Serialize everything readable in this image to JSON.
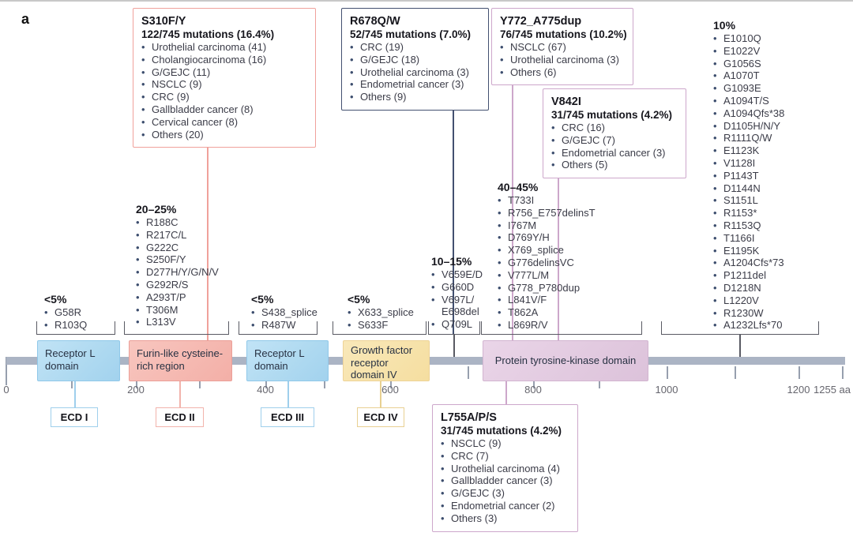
{
  "panel_label": "a",
  "colors": {
    "pink_accent": "#f0a19b",
    "navy_accent": "#435070",
    "purple_accent": "#cda7cb",
    "bullet": "#3d4e6e",
    "backbone_bar": "#abb4c4",
    "domain_blue": "#aed9f0",
    "domain_pink": "#f3afa7",
    "domain_yellow": "#f5dea0",
    "domain_purple": "#dcc2da"
  },
  "annotation_boxes": [
    {
      "title": "S310F/Y",
      "subtitle": "122/745 mutations (16.4%)",
      "items": [
        "Urothelial carcinoma (41)",
        "Cholangiocarcinoma (16)",
        "G/GEJC (11)",
        "NSCLC (9)",
        "CRC (9)",
        "Gallbladder cancer (8)",
        "Cervical cancer (8)",
        "Others (20)"
      ]
    },
    {
      "title": "R678Q/W",
      "subtitle": "52/745 mutations (7.0%)",
      "items": [
        "CRC (19)",
        "G/GEJC (18)",
        "Urothelial carcinoma (3)",
        "Endometrial cancer (3)",
        "Others (9)"
      ]
    },
    {
      "title": "Y772_A775dup",
      "subtitle": "76/745 mutations (10.2%)",
      "items": [
        "NSCLC (67)",
        "Urothelial carcinoma (3)",
        "Others (6)"
      ]
    },
    {
      "title": "V842I",
      "subtitle": "31/745 mutations (4.2%)",
      "items": [
        "CRC (16)",
        "G/GEJC (7)",
        "Endometrial cancer (3)",
        "Others (5)"
      ]
    },
    {
      "title": "L755A/P/S",
      "subtitle": "31/745 mutations (4.2%)",
      "items": [
        "NSCLC (9)",
        "CRC (7)",
        "Urothelial carcinoma (4)",
        "Gallbladder cancer (3)",
        "G/GEJC (3)",
        "Endometrial cancer (2)",
        "Others (3)"
      ]
    }
  ],
  "mutation_lists": [
    {
      "heading": "<5%",
      "items": [
        "G58R",
        "R103Q"
      ]
    },
    {
      "heading": "20–25%",
      "items": [
        "R188C",
        "R217C/L",
        "G222C",
        "S250F/Y",
        "D277H/Y/G/N/V",
        "G292R/S",
        "A293T/P",
        "T306M",
        "L313V"
      ]
    },
    {
      "heading": "<5%",
      "items": [
        "S438_splice",
        "R487W"
      ]
    },
    {
      "heading": "<5%",
      "items": [
        "X633_splice",
        "S633F"
      ]
    },
    {
      "heading": "10–15%",
      "items": [
        "V659E/D",
        "G660D",
        "V697L/\nE698del",
        "Q709L"
      ]
    },
    {
      "heading": "40–45%",
      "items": [
        "T733I",
        "R756_E757delinsT",
        "I767M",
        "D769Y/H",
        "X769_splice",
        "G776delinsVC",
        "V777L/M",
        "G778_P780dup",
        "L841V/F",
        "T862A",
        "L869R/V"
      ]
    },
    {
      "heading": "10%",
      "items": [
        "E1010Q",
        "E1022V",
        "G1056S",
        "A1070T",
        "G1093E",
        "A1094T/S",
        "A1094Qfs*38",
        "D1105H/N/Y",
        "R1111Q/W",
        "E1123K",
        "V1128I",
        "P1143T",
        "D1144N",
        "S1151L",
        "R1153*",
        "R1153Q",
        "T1166I",
        "E1195K",
        "A1204Cfs*73",
        "P1211del",
        "D1218N",
        "L1220V",
        "R1230W",
        "A1232Lfs*70"
      ]
    }
  ],
  "domains": [
    {
      "label": "Receptor L domain"
    },
    {
      "label": "Furin-like cysteine-rich region"
    },
    {
      "label": "Receptor L domain"
    },
    {
      "label": "Growth factor receptor domain IV"
    },
    {
      "label": "Protein tyrosine-kinase domain"
    }
  ],
  "ecd_labels": [
    "ECD I",
    "ECD II",
    "ECD III",
    "ECD IV"
  ],
  "axis": {
    "tick_labels": [
      "0",
      "200",
      "400",
      "600",
      "800",
      "1000",
      "1200"
    ],
    "end_label": "1255 aa"
  }
}
